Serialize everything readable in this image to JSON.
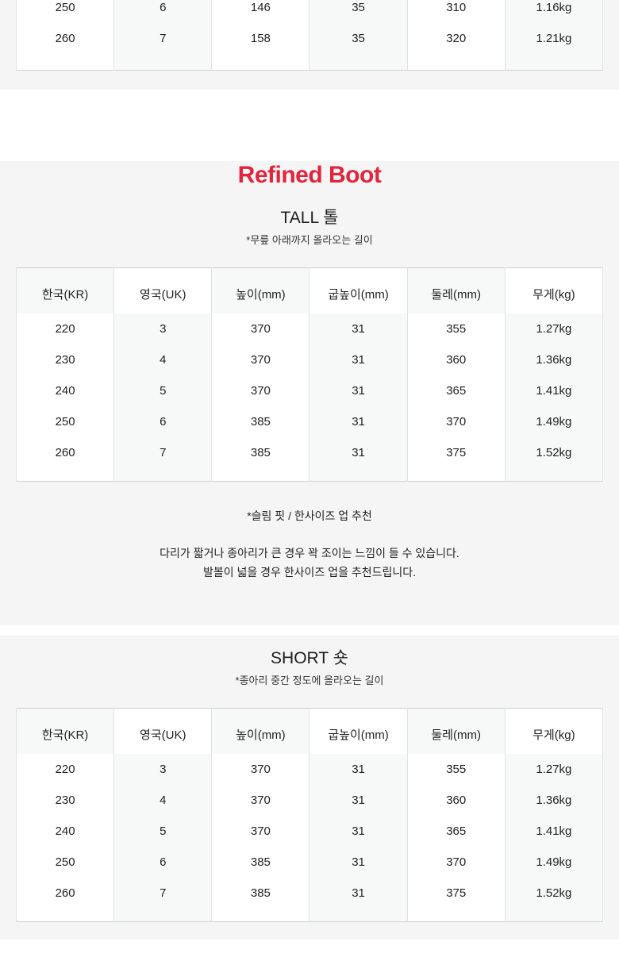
{
  "colors": {
    "accent_red": "#e2243c",
    "section_bg": "#f5f5f5",
    "table_stripe": "#f7f8f8"
  },
  "title": "Refined Boot",
  "top_table": {
    "rows": [
      [
        "250",
        "6",
        "146",
        "35",
        "310",
        "1.16kg"
      ],
      [
        "260",
        "7",
        "158",
        "35",
        "320",
        "1.21kg"
      ]
    ]
  },
  "sections": [
    {
      "id": "tall",
      "heading": "TALL 톨",
      "subheading": "*무릎 아래까지 올라오는 길이",
      "table": {
        "headers": [
          "한국(KR)",
          "영국(UK)",
          "높이(mm)",
          "굽높이(mm)",
          "둘레(mm)",
          "무게(kg)"
        ],
        "rows": [
          [
            "220",
            "3",
            "370",
            "31",
            "355",
            "1.27kg"
          ],
          [
            "230",
            "4",
            "370",
            "31",
            "360",
            "1.36kg"
          ],
          [
            "240",
            "5",
            "370",
            "31",
            "365",
            "1.41kg"
          ],
          [
            "250",
            "6",
            "385",
            "31",
            "370",
            "1.49kg"
          ],
          [
            "260",
            "7",
            "385",
            "31",
            "375",
            "1.52kg"
          ]
        ]
      },
      "fit_note": "*슬림 핏 / 한사이즈 업 추천",
      "description": [
        "다리가 짧거나 종아리가 큰 경우 꽉 조이는 느낌이 들 수 있습니다.",
        "발볼이 넓을 경우 한사이즈 업을 추천드립니다."
      ]
    },
    {
      "id": "short",
      "heading": "SHORT 숏",
      "subheading": "*종아리 중간 정도에 올라오는 길이",
      "table": {
        "headers": [
          "한국(KR)",
          "영국(UK)",
          "높이(mm)",
          "굽높이(mm)",
          "둘레(mm)",
          "무게(kg)"
        ],
        "rows": [
          [
            "220",
            "3",
            "370",
            "31",
            "355",
            "1.27kg"
          ],
          [
            "230",
            "4",
            "370",
            "31",
            "360",
            "1.36kg"
          ],
          [
            "240",
            "5",
            "370",
            "31",
            "365",
            "1.41kg"
          ],
          [
            "250",
            "6",
            "385",
            "31",
            "370",
            "1.49kg"
          ],
          [
            "260",
            "7",
            "385",
            "31",
            "375",
            "1.52kg"
          ]
        ]
      }
    }
  ]
}
